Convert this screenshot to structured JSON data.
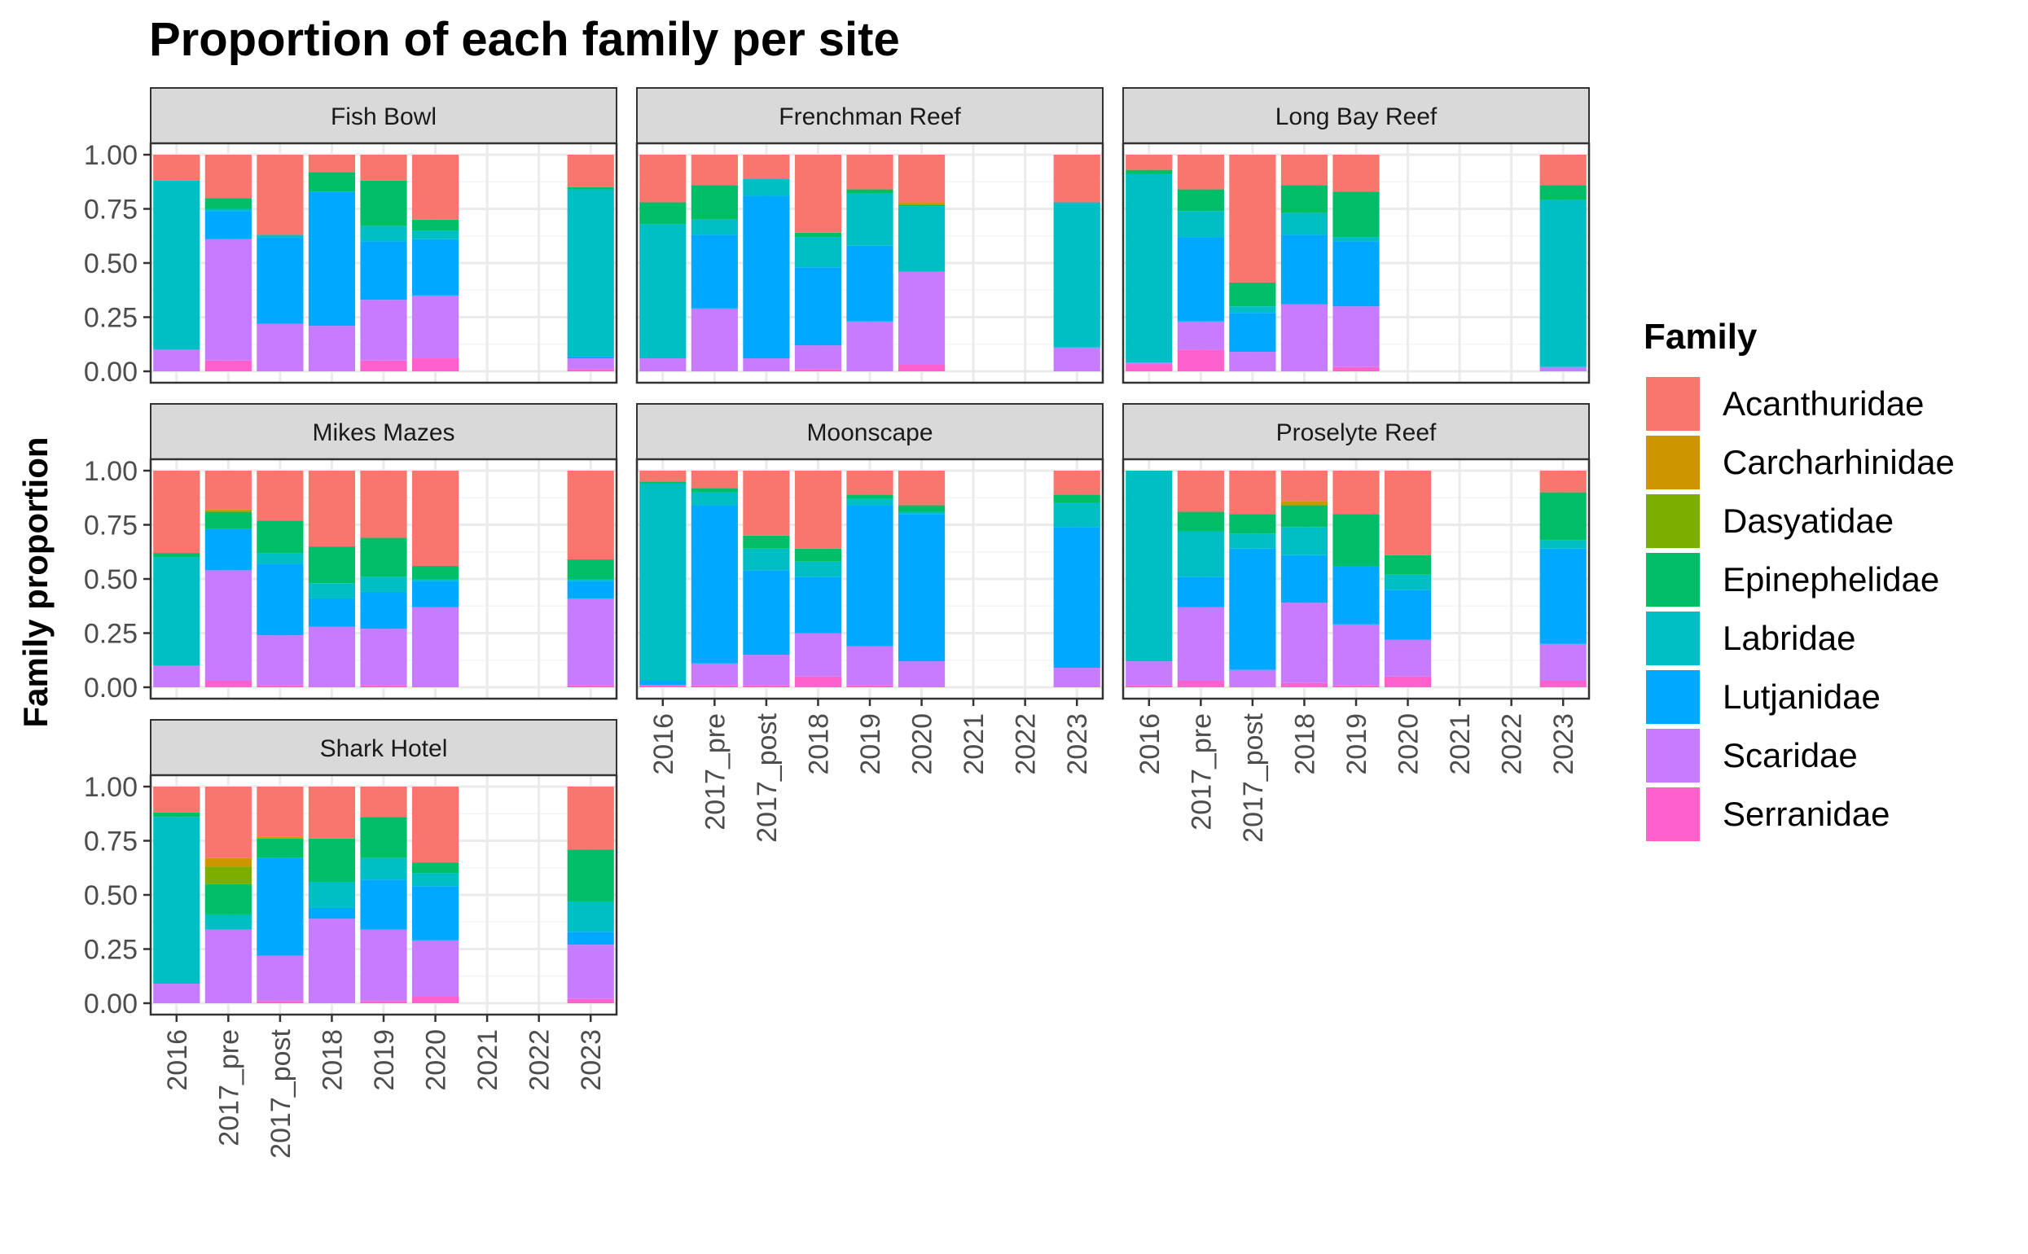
{
  "chart_data": {
    "type": "bar",
    "stacked": true,
    "title": "Proportion of each family per site",
    "ylabel": "Family proportion",
    "xlabel": "",
    "ylim": [
      0,
      1
    ],
    "y_ticks": [
      "0.00",
      "0.25",
      "0.50",
      "0.75",
      "1.00"
    ],
    "grid": true,
    "legend": {
      "title": "Family",
      "placement": "right",
      "entries": [
        {
          "name": "Acanthuridae",
          "color": "#F8766D"
        },
        {
          "name": "Carcharhinidae",
          "color": "#CD9600"
        },
        {
          "name": "Dasyatidae",
          "color": "#7CAE00"
        },
        {
          "name": "Epinephelidae",
          "color": "#00BE67"
        },
        {
          "name": "Labridae",
          "color": "#00BFC4"
        },
        {
          "name": "Lutjanidae",
          "color": "#00A9FF"
        },
        {
          "name": "Scaridae",
          "color": "#C77CFF"
        },
        {
          "name": "Serranidae",
          "color": "#FF61CC"
        }
      ]
    },
    "categories": [
      "2016",
      "2017_pre",
      "2017_post",
      "2018",
      "2019",
      "2020",
      "2021",
      "2022",
      "2023"
    ],
    "stack_order_bottom_to_top": [
      "Serranidae",
      "Scaridae",
      "Lutjanidae",
      "Labridae",
      "Epinephelidae",
      "Dasyatidae",
      "Carcharhinidae",
      "Acanthuridae"
    ],
    "panels": [
      {
        "site": "Fish Bowl",
        "bars": {
          "2016": {
            "Serranidae": 0.0,
            "Scaridae": 0.1,
            "Lutjanidae": 0.0,
            "Labridae": 0.78,
            "Epinephelidae": 0.0,
            "Acanthuridae": 0.12
          },
          "2017_pre": {
            "Serranidae": 0.05,
            "Scaridae": 0.56,
            "Lutjanidae": 0.13,
            "Labridae": 0.01,
            "Epinephelidae": 0.05,
            "Acanthuridae": 0.2
          },
          "2017_post": {
            "Serranidae": 0.0,
            "Scaridae": 0.22,
            "Lutjanidae": 0.4,
            "Labridae": 0.01,
            "Acanthuridae": 0.37
          },
          "2018": {
            "Serranidae": 0.0,
            "Scaridae": 0.21,
            "Lutjanidae": 0.62,
            "Labridae": 0.0,
            "Epinephelidae": 0.09,
            "Acanthuridae": 0.08
          },
          "2019": {
            "Serranidae": 0.05,
            "Scaridae": 0.28,
            "Lutjanidae": 0.27,
            "Labridae": 0.07,
            "Epinephelidae": 0.21,
            "Acanthuridae": 0.12
          },
          "2020": {
            "Serranidae": 0.06,
            "Scaridae": 0.29,
            "Lutjanidae": 0.26,
            "Labridae": 0.04,
            "Epinephelidae": 0.05,
            "Acanthuridae": 0.3
          },
          "2023": {
            "Serranidae": 0.01,
            "Scaridae": 0.05,
            "Lutjanidae": 0.01,
            "Labridae": 0.77,
            "Epinephelidae": 0.01,
            "Acanthuridae": 0.15
          }
        }
      },
      {
        "site": "Frenchman Reef",
        "bars": {
          "2016": {
            "Serranidae": 0.0,
            "Scaridae": 0.06,
            "Lutjanidae": 0.0,
            "Labridae": 0.62,
            "Epinephelidae": 0.1,
            "Acanthuridae": 0.22
          },
          "2017_pre": {
            "Serranidae": 0.0,
            "Scaridae": 0.29,
            "Lutjanidae": 0.34,
            "Labridae": 0.07,
            "Epinephelidae": 0.16,
            "Acanthuridae": 0.14
          },
          "2017_post": {
            "Serranidae": 0.0,
            "Scaridae": 0.06,
            "Lutjanidae": 0.75,
            "Labridae": 0.08,
            "Acanthuridae": 0.11
          },
          "2018": {
            "Serranidae": 0.01,
            "Scaridae": 0.11,
            "Lutjanidae": 0.36,
            "Labridae": 0.14,
            "Epinephelidae": 0.02,
            "Acanthuridae": 0.36
          },
          "2019": {
            "Serranidae": 0.0,
            "Scaridae": 0.23,
            "Lutjanidae": 0.35,
            "Labridae": 0.24,
            "Epinephelidae": 0.02,
            "Acanthuridae": 0.16
          },
          "2020": {
            "Serranidae": 0.03,
            "Scaridae": 0.43,
            "Lutjanidae": 0.0,
            "Labridae": 0.3,
            "Epinephelidae": 0.01,
            "Carcharhinidae": 0.01,
            "Acanthuridae": 0.22
          },
          "2023": {
            "Serranidae": 0.0,
            "Scaridae": 0.11,
            "Lutjanidae": 0.0,
            "Labridae": 0.67,
            "Epinephelidae": 0.0,
            "Acanthuridae": 0.22
          }
        }
      },
      {
        "site": "Long Bay Reef",
        "bars": {
          "2016": {
            "Serranidae": 0.03,
            "Scaridae": 0.01,
            "Lutjanidae": 0.0,
            "Labridae": 0.87,
            "Epinephelidae": 0.02,
            "Acanthuridae": 0.07
          },
          "2017_pre": {
            "Serranidae": 0.1,
            "Scaridae": 0.13,
            "Lutjanidae": 0.39,
            "Labridae": 0.12,
            "Epinephelidae": 0.1,
            "Acanthuridae": 0.16
          },
          "2017_post": {
            "Serranidae": 0.0,
            "Scaridae": 0.09,
            "Lutjanidae": 0.18,
            "Labridae": 0.03,
            "Epinephelidae": 0.11,
            "Acanthuridae": 0.59
          },
          "2018": {
            "Serranidae": 0.0,
            "Scaridae": 0.31,
            "Lutjanidae": 0.32,
            "Labridae": 0.1,
            "Epinephelidae": 0.13,
            "Acanthuridae": 0.14
          },
          "2019": {
            "Serranidae": 0.02,
            "Scaridae": 0.28,
            "Lutjanidae": 0.3,
            "Labridae": 0.02,
            "Epinephelidae": 0.21,
            "Acanthuridae": 0.17
          },
          "2023": {
            "Serranidae": 0.0,
            "Scaridae": 0.02,
            "Lutjanidae": 0.0,
            "Labridae": 0.77,
            "Epinephelidae": 0.07,
            "Acanthuridae": 0.14
          }
        }
      },
      {
        "site": "Mikes Mazes",
        "bars": {
          "2016": {
            "Serranidae": 0.0,
            "Scaridae": 0.1,
            "Lutjanidae": 0.0,
            "Labridae": 0.5,
            "Epinephelidae": 0.02,
            "Acanthuridae": 0.38
          },
          "2017_pre": {
            "Serranidae": 0.03,
            "Scaridae": 0.51,
            "Lutjanidae": 0.19,
            "Labridae": 0.0,
            "Epinephelidae": 0.08,
            "Carcharhinidae": 0.01,
            "Acanthuridae": 0.18
          },
          "2017_post": {
            "Serranidae": 0.01,
            "Scaridae": 0.23,
            "Lutjanidae": 0.33,
            "Labridae": 0.05,
            "Epinephelidae": 0.15,
            "Acanthuridae": 0.23
          },
          "2018": {
            "Serranidae": 0.0,
            "Scaridae": 0.28,
            "Lutjanidae": 0.13,
            "Labridae": 0.07,
            "Epinephelidae": 0.17,
            "Acanthuridae": 0.35
          },
          "2019": {
            "Serranidae": 0.01,
            "Scaridae": 0.26,
            "Lutjanidae": 0.17,
            "Labridae": 0.07,
            "Epinephelidae": 0.18,
            "Acanthuridae": 0.31
          },
          "2020": {
            "Serranidae": 0.0,
            "Scaridae": 0.37,
            "Lutjanidae": 0.12,
            "Labridae": 0.01,
            "Epinephelidae": 0.06,
            "Acanthuridae": 0.44
          },
          "2023": {
            "Serranidae": 0.01,
            "Scaridae": 0.4,
            "Lutjanidae": 0.08,
            "Labridae": 0.01,
            "Epinephelidae": 0.09,
            "Acanthuridae": 0.41
          }
        }
      },
      {
        "site": "Moonscape",
        "bars": {
          "2016": {
            "Serranidae": 0.01,
            "Scaridae": 0.0,
            "Lutjanidae": 0.02,
            "Labridae": 0.91,
            "Epinephelidae": 0.01,
            "Acanthuridae": 0.05
          },
          "2017_pre": {
            "Serranidae": 0.01,
            "Scaridae": 0.1,
            "Lutjanidae": 0.73,
            "Labridae": 0.06,
            "Epinephelidae": 0.02,
            "Acanthuridae": 0.08
          },
          "2017_post": {
            "Serranidae": 0.01,
            "Scaridae": 0.14,
            "Lutjanidae": 0.39,
            "Labridae": 0.1,
            "Epinephelidae": 0.06,
            "Acanthuridae": 0.3
          },
          "2018": {
            "Serranidae": 0.05,
            "Scaridae": 0.2,
            "Lutjanidae": 0.26,
            "Labridae": 0.07,
            "Epinephelidae": 0.06,
            "Acanthuridae": 0.36
          },
          "2019": {
            "Serranidae": 0.01,
            "Scaridae": 0.18,
            "Lutjanidae": 0.65,
            "Labridae": 0.03,
            "Epinephelidae": 0.02,
            "Acanthuridae": 0.11
          },
          "2020": {
            "Serranidae": 0.0,
            "Scaridae": 0.12,
            "Lutjanidae": 0.68,
            "Labridae": 0.01,
            "Epinephelidae": 0.03,
            "Carcharhinidae": 0.0,
            "Acanthuridae": 0.16
          },
          "2023": {
            "Serranidae": 0.0,
            "Scaridae": 0.09,
            "Lutjanidae": 0.65,
            "Labridae": 0.11,
            "Epinephelidae": 0.04,
            "Acanthuridae": 0.11
          }
        }
      },
      {
        "site": "Proselyte Reef",
        "bars": {
          "2016": {
            "Serranidae": 0.01,
            "Scaridae": 0.11,
            "Lutjanidae": 0.0,
            "Labridae": 0.88,
            "Epinephelidae": 0.0,
            "Acanthuridae": 0.0
          },
          "2017_pre": {
            "Serranidae": 0.03,
            "Scaridae": 0.34,
            "Lutjanidae": 0.14,
            "Labridae": 0.21,
            "Epinephelidae": 0.09,
            "Acanthuridae": 0.19
          },
          "2017_post": {
            "Serranidae": 0.0,
            "Scaridae": 0.08,
            "Lutjanidae": 0.56,
            "Labridae": 0.07,
            "Epinephelidae": 0.09,
            "Acanthuridae": 0.2
          },
          "2018": {
            "Serranidae": 0.02,
            "Scaridae": 0.37,
            "Lutjanidae": 0.22,
            "Labridae": 0.13,
            "Epinephelidae": 0.1,
            "Carcharhinidae": 0.02,
            "Acanthuridae": 0.14
          },
          "2019": {
            "Serranidae": 0.01,
            "Scaridae": 0.28,
            "Lutjanidae": 0.27,
            "Labridae": 0.0,
            "Epinephelidae": 0.24,
            "Acanthuridae": 0.2
          },
          "2020": {
            "Serranidae": 0.05,
            "Scaridae": 0.17,
            "Lutjanidae": 0.23,
            "Labridae": 0.07,
            "Epinephelidae": 0.09,
            "Acanthuridae": 0.39
          },
          "2023": {
            "Serranidae": 0.03,
            "Scaridae": 0.17,
            "Lutjanidae": 0.44,
            "Labridae": 0.04,
            "Epinephelidae": 0.22,
            "Acanthuridae": 0.1
          }
        }
      },
      {
        "site": "Shark Hotel",
        "bars": {
          "2016": {
            "Serranidae": 0.0,
            "Scaridae": 0.09,
            "Lutjanidae": 0.0,
            "Labridae": 0.77,
            "Epinephelidae": 0.02,
            "Acanthuridae": 0.12
          },
          "2017_pre": {
            "Serranidae": 0.0,
            "Scaridae": 0.34,
            "Lutjanidae": 0.0,
            "Labridae": 0.07,
            "Epinephelidae": 0.14,
            "Dasyatidae": 0.08,
            "Carcharhinidae": 0.04,
            "Acanthuridae": 0.33
          },
          "2017_post": {
            "Serranidae": 0.01,
            "Scaridae": 0.21,
            "Lutjanidae": 0.45,
            "Labridae": 0.0,
            "Epinephelidae": 0.09,
            "Carcharhinidae": 0.01,
            "Acanthuridae": 0.23
          },
          "2018": {
            "Serranidae": 0.0,
            "Scaridae": 0.39,
            "Lutjanidae": 0.05,
            "Labridae": 0.12,
            "Epinephelidae": 0.2,
            "Acanthuridae": 0.24
          },
          "2019": {
            "Serranidae": 0.01,
            "Scaridae": 0.33,
            "Lutjanidae": 0.23,
            "Labridae": 0.1,
            "Epinephelidae": 0.19,
            "Acanthuridae": 0.14
          },
          "2020": {
            "Serranidae": 0.03,
            "Scaridae": 0.26,
            "Lutjanidae": 0.25,
            "Labridae": 0.06,
            "Epinephelidae": 0.05,
            "Acanthuridae": 0.35
          },
          "2023": {
            "Serranidae": 0.02,
            "Scaridae": 0.25,
            "Lutjanidae": 0.06,
            "Labridae": 0.14,
            "Epinephelidae": 0.24,
            "Acanthuridae": 0.29
          }
        }
      }
    ]
  }
}
